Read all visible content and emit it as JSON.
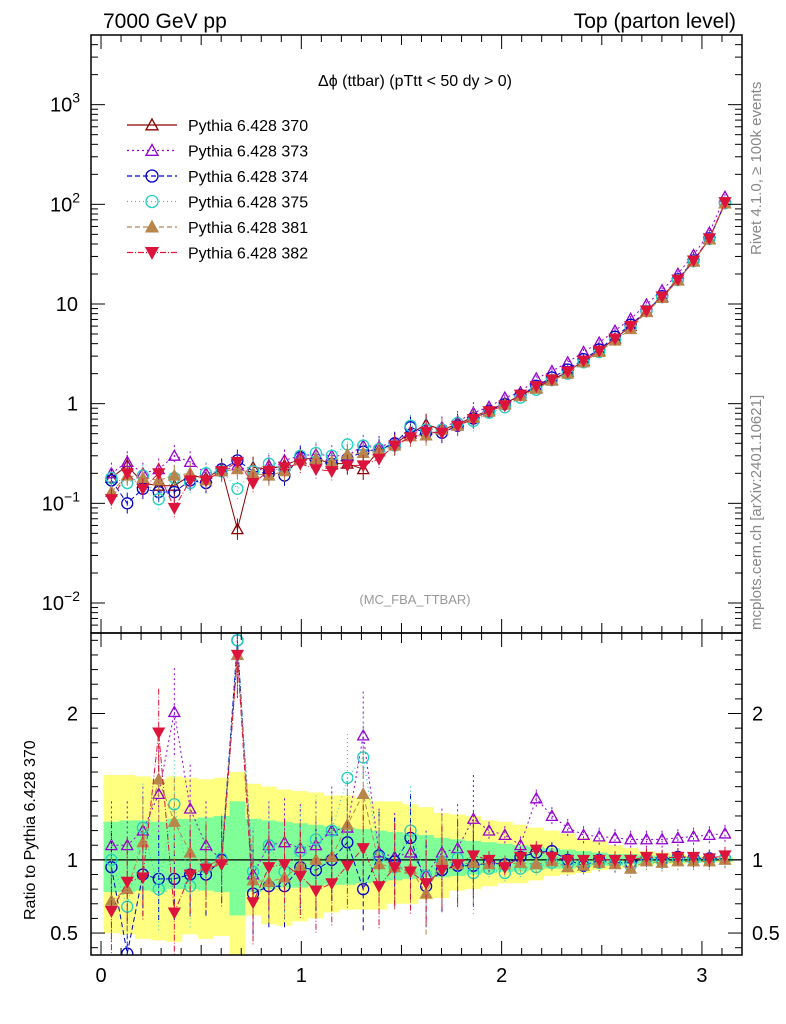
{
  "header": {
    "left": "7000 GeV pp",
    "right": "Top (parton level)"
  },
  "side_labels": {
    "rivet": "Rivet 4.1.0, ≥ 100k events",
    "mcplots": "mcplots.cern.ch [arXiv:2401.10621]"
  },
  "watermark": "(MC_FBA_TTBAR)",
  "colors": {
    "band_outer": "#ffff80",
    "band_inner": "#80ff99"
  },
  "chart_data": [
    {
      "type": "line",
      "scale": "log",
      "title": "Δϕ (ttbar) (pTtt < 50 dy > 0)",
      "xlabel": "",
      "ylabel": "",
      "xlim": [
        -0.05,
        3.2
      ],
      "ylim": [
        0.005,
        5000
      ],
      "yticks": [
        {
          "value": 0.01,
          "base": "10",
          "exp": "−2",
          "text": ""
        },
        {
          "value": 0.1,
          "base": "10",
          "exp": "−1",
          "text": ""
        },
        {
          "value": 1,
          "base": "",
          "exp": "",
          "text": "1"
        },
        {
          "value": 10,
          "base": "",
          "exp": "",
          "text": "10"
        },
        {
          "value": 100,
          "base": "10",
          "exp": "2",
          "text": ""
        },
        {
          "value": 1000,
          "base": "10",
          "exp": "3",
          "text": ""
        }
      ],
      "x": [
        0.052,
        0.131,
        0.209,
        0.288,
        0.366,
        0.445,
        0.524,
        0.602,
        0.681,
        0.759,
        0.838,
        0.916,
        0.995,
        1.073,
        1.152,
        1.23,
        1.309,
        1.388,
        1.466,
        1.545,
        1.623,
        1.702,
        1.78,
        1.859,
        1.937,
        2.016,
        2.094,
        2.173,
        2.251,
        2.33,
        2.409,
        2.487,
        2.566,
        2.644,
        2.723,
        2.801,
        2.88,
        2.958,
        3.037,
        3.115
      ],
      "series": [
        {
          "name": "Pythia 6.428 370",
          "color": "#8b0000",
          "marker": "triangle-open",
          "dash": "",
          "values": [
            0.18,
            0.24,
            0.16,
            0.15,
            0.15,
            0.19,
            0.18,
            0.22,
            0.055,
            0.23,
            0.22,
            0.24,
            0.28,
            0.28,
            0.25,
            0.25,
            0.22,
            0.34,
            0.4,
            0.5,
            0.62,
            0.55,
            0.62,
            0.74,
            0.86,
            1.01,
            1.21,
            1.45,
            1.72,
            2.1,
            2.7,
            3.4,
            4.5,
            6.0,
            8.4,
            11.8,
            17.3,
            26.9,
            45,
            102
          ]
        },
        {
          "name": "Pythia 6.428 373",
          "color": "#9400d3",
          "marker": "triangle-open",
          "dash": "2,3",
          "values": [
            0.2,
            0.26,
            0.2,
            0.22,
            0.3,
            0.26,
            0.2,
            0.21,
            0.24,
            0.2,
            0.24,
            0.27,
            0.3,
            0.31,
            0.3,
            0.3,
            0.38,
            0.37,
            0.41,
            0.52,
            0.55,
            0.58,
            0.66,
            0.81,
            0.93,
            1.15,
            1.3,
            1.79,
            2.12,
            2.6,
            3.3,
            4.1,
            5.4,
            7.1,
            9.9,
            13.7,
            20.1,
            31.0,
            52,
            119
          ]
        },
        {
          "name": "Pythia 6.428 374",
          "color": "#0000cd",
          "marker": "circle-open",
          "dash": "5,3",
          "values": [
            0.17,
            0.1,
            0.14,
            0.13,
            0.13,
            0.17,
            0.16,
            0.22,
            0.27,
            0.21,
            0.2,
            0.19,
            0.29,
            0.26,
            0.25,
            0.28,
            0.33,
            0.35,
            0.4,
            0.58,
            0.51,
            0.51,
            0.6,
            0.71,
            0.84,
            0.99,
            1.22,
            1.51,
            1.83,
            2.2,
            2.8,
            3.5,
            4.7,
            6.2,
            8.5,
            12.0,
            17.7,
            27.3,
            45.6,
            103
          ]
        },
        {
          "name": "Pythia 6.428 375",
          "color": "#20d0c0",
          "marker": "circle-open",
          "dash": "1,3",
          "values": [
            0.18,
            0.16,
            0.19,
            0.11,
            0.18,
            0.16,
            0.2,
            0.21,
            0.14,
            0.21,
            0.25,
            0.22,
            0.3,
            0.32,
            0.3,
            0.39,
            0.38,
            0.35,
            0.38,
            0.6,
            0.55,
            0.55,
            0.64,
            0.67,
            0.81,
            0.92,
            1.15,
            1.38,
            1.72,
            2.0,
            2.6,
            3.3,
            4.4,
            5.8,
            8.5,
            11.7,
            17.4,
            26.9,
            44.9,
            103
          ]
        },
        {
          "name": "Pythia 6.428 381",
          "color": "#b8864b",
          "marker": "triangle-filled",
          "dash": "5,3",
          "values": [
            0.13,
            0.19,
            0.18,
            0.17,
            0.19,
            0.2,
            0.17,
            0.21,
            0.22,
            0.2,
            0.19,
            0.21,
            0.27,
            0.28,
            0.26,
            0.31,
            0.32,
            0.33,
            0.38,
            0.47,
            0.48,
            0.55,
            0.6,
            0.72,
            0.83,
            0.98,
            1.19,
            1.41,
            1.7,
            2.0,
            2.6,
            3.3,
            4.3,
            5.6,
            8.3,
            11.5,
            17.2,
            26.6,
            44.4,
            102
          ]
        },
        {
          "name": "Pythia 6.428 382",
          "color": "#dc143c",
          "marker": "triangle-down-filled",
          "dash": "6,2,1,2",
          "values": [
            0.11,
            0.2,
            0.14,
            0.2,
            0.09,
            0.17,
            0.17,
            0.21,
            0.26,
            0.16,
            0.21,
            0.23,
            0.25,
            0.22,
            0.21,
            0.24,
            0.24,
            0.28,
            0.38,
            0.46,
            0.52,
            0.51,
            0.6,
            0.7,
            0.84,
            0.96,
            1.23,
            1.5,
            1.75,
            2.1,
            2.7,
            3.4,
            4.5,
            6.0,
            8.6,
            11.9,
            17.6,
            27.3,
            45.6,
            105
          ]
        }
      ]
    },
    {
      "type": "line",
      "title": "",
      "xlabel": "",
      "ylabel": "Ratio to Pythia 6.428 370",
      "xlim": [
        -0.05,
        3.2
      ],
      "ylim": [
        0.35,
        2.55
      ],
      "xticks": [
        {
          "value": 0,
          "text": "0"
        },
        {
          "value": 1,
          "text": "1"
        },
        {
          "value": 2,
          "text": "2"
        },
        {
          "value": 3,
          "text": "3"
        }
      ],
      "yticks": [
        {
          "value": 0.5,
          "text": "0.5"
        },
        {
          "value": 1,
          "text": "1"
        },
        {
          "value": 2,
          "text": "2"
        }
      ],
      "band": {
        "outer_upper": [
          1.58,
          1.58,
          1.57,
          1.55,
          1.57,
          1.56,
          1.55,
          1.56,
          1.6,
          1.52,
          1.5,
          1.48,
          1.47,
          1.46,
          1.44,
          1.44,
          1.42,
          1.4,
          1.4,
          1.38,
          1.36,
          1.32,
          1.31,
          1.3,
          1.27,
          1.26,
          1.24,
          1.22,
          1.2,
          1.18,
          1.15,
          1.13,
          1.1,
          1.08,
          1.06,
          1.05,
          1.04,
          1.03,
          1.02,
          1.02
        ],
        "outer_lower": [
          0.5,
          0.49,
          0.46,
          0.45,
          0.44,
          0.49,
          0.46,
          0.48,
          0.35,
          0.62,
          0.56,
          0.55,
          0.58,
          0.6,
          0.64,
          0.66,
          0.66,
          0.66,
          0.7,
          0.7,
          0.73,
          0.74,
          0.79,
          0.8,
          0.82,
          0.84,
          0.84,
          0.86,
          0.89,
          0.9,
          0.91,
          0.93,
          0.94,
          0.95,
          0.96,
          0.97,
          0.97,
          0.98,
          0.98,
          0.98
        ],
        "inner_upper": [
          1.26,
          1.27,
          1.27,
          1.26,
          1.28,
          1.28,
          1.29,
          1.3,
          1.4,
          1.28,
          1.27,
          1.26,
          1.25,
          1.24,
          1.23,
          1.22,
          1.21,
          1.2,
          1.19,
          1.18,
          1.17,
          1.15,
          1.14,
          1.13,
          1.12,
          1.11,
          1.1,
          1.09,
          1.08,
          1.07,
          1.06,
          1.05,
          1.04,
          1.04,
          1.03,
          1.03,
          1.02,
          1.02,
          1.01,
          1.01
        ],
        "inner_lower": [
          0.78,
          0.78,
          0.79,
          0.78,
          0.8,
          0.8,
          0.79,
          0.78,
          0.62,
          0.78,
          0.8,
          0.81,
          0.81,
          0.82,
          0.83,
          0.83,
          0.84,
          0.85,
          0.86,
          0.87,
          0.88,
          0.88,
          0.89,
          0.9,
          0.91,
          0.92,
          0.92,
          0.93,
          0.94,
          0.94,
          0.95,
          0.96,
          0.96,
          0.97,
          0.97,
          0.98,
          0.98,
          0.98,
          0.99,
          0.99
        ]
      },
      "series": [
        {
          "name": "Pythia 6.428 373",
          "values": [
            1.1,
            1.1,
            1.2,
            1.45,
            2.01,
            1.35,
            1.1,
            1.0,
            2.4,
            0.9,
            1.1,
            1.12,
            1.08,
            1.1,
            1.2,
            1.22,
            1.85,
            1.05,
            1.02,
            1.05,
            0.9,
            1.05,
            1.08,
            1.28,
            1.2,
            1.17,
            1.1,
            1.42,
            1.3,
            1.22,
            1.17,
            1.16,
            1.15,
            1.14,
            1.14,
            1.14,
            1.15,
            1.16,
            1.17,
            1.18
          ]
        },
        {
          "name": "Pythia 6.428 374",
          "values": [
            0.95,
            0.36,
            0.9,
            0.87,
            0.87,
            0.9,
            0.9,
            1.0,
            2.5,
            0.77,
            0.82,
            0.82,
            0.95,
            0.93,
            1.0,
            1.12,
            0.8,
            1.03,
            0.99,
            1.15,
            0.82,
            0.93,
            0.96,
            0.96,
            0.98,
            0.97,
            1.02,
            1.05,
            1.06,
            1.0,
            0.96,
            1.0,
            0.98,
            0.98,
            1.01,
            1.0,
            1.02,
            1.01,
            1.01,
            1.01
          ]
        },
        {
          "name": "Pythia 6.428 375",
          "values": [
            1.0,
            0.68,
            1.22,
            0.8,
            1.38,
            0.82,
            0.95,
            1.01,
            2.5,
            0.92,
            1.1,
            0.92,
            1.06,
            1.14,
            1.2,
            1.56,
            1.7,
            1.02,
            0.95,
            1.2,
            0.89,
            0.99,
            1.01,
            0.91,
            0.94,
            0.91,
            0.94,
            0.95,
            0.98,
            0.97,
            0.97,
            0.98,
            0.98,
            0.96,
            1.01,
            0.99,
            1.01,
            1.0,
            1.0,
            1.01
          ]
        },
        {
          "name": "Pythia 6.428 381",
          "values": [
            0.72,
            0.8,
            1.12,
            1.55,
            1.26,
            1.05,
            0.96,
            1.0,
            2.4,
            0.86,
            0.85,
            0.88,
            0.96,
            1.0,
            1.02,
            1.24,
            1.45,
            0.97,
            0.95,
            0.94,
            0.77,
            1.0,
            0.97,
            0.98,
            0.97,
            0.97,
            0.98,
            0.97,
            0.99,
            0.95,
            0.96,
            0.98,
            0.97,
            0.94,
            0.99,
            0.98,
            0.99,
            0.99,
            0.99,
            1.0
          ]
        },
        {
          "name": "Pythia 6.428 382",
          "values": [
            0.65,
            0.85,
            0.88,
            1.87,
            0.64,
            0.9,
            0.94,
            0.97,
            2.4,
            0.71,
            0.95,
            0.97,
            0.89,
            0.79,
            0.84,
            0.96,
            1.08,
            0.82,
            0.95,
            0.92,
            0.84,
            0.93,
            0.97,
            1.03,
            1.0,
            0.95,
            1.02,
            1.07,
            1.02,
            1.0,
            1.0,
            1.0,
            1.0,
            1.0,
            1.02,
            1.01,
            1.02,
            1.02,
            1.01,
            1.03
          ]
        }
      ]
    }
  ]
}
